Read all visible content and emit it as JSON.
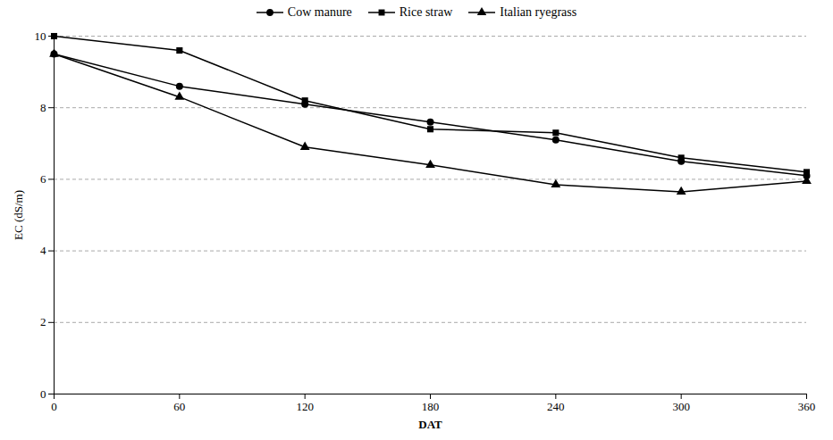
{
  "chart_data": {
    "type": "line",
    "x": [
      0,
      60,
      120,
      180,
      240,
      300,
      360
    ],
    "series": [
      {
        "name": "Cow manure",
        "color": "#000000",
        "marker": "circle",
        "values": [
          9.5,
          8.6,
          8.1,
          7.6,
          7.1,
          6.5,
          6.1
        ]
      },
      {
        "name": "Rice straw",
        "color": "#000000",
        "marker": "square",
        "values": [
          10.0,
          9.6,
          8.2,
          7.4,
          7.3,
          6.6,
          6.2
        ]
      },
      {
        "name": "Italian ryegrass",
        "color": "#000000",
        "marker": "triangle",
        "values": [
          9.5,
          8.3,
          6.9,
          6.4,
          5.85,
          5.65,
          5.95
        ]
      }
    ],
    "xlabel": "DAT",
    "ylabel": "EC (dS/m)",
    "xlim": [
      0,
      360
    ],
    "xticks": [
      0,
      60,
      120,
      180,
      240,
      300,
      360
    ],
    "ylim": [
      0,
      10
    ],
    "yticks": [
      0,
      2,
      4,
      6,
      8,
      10
    ],
    "grid": true,
    "legend": "top"
  }
}
